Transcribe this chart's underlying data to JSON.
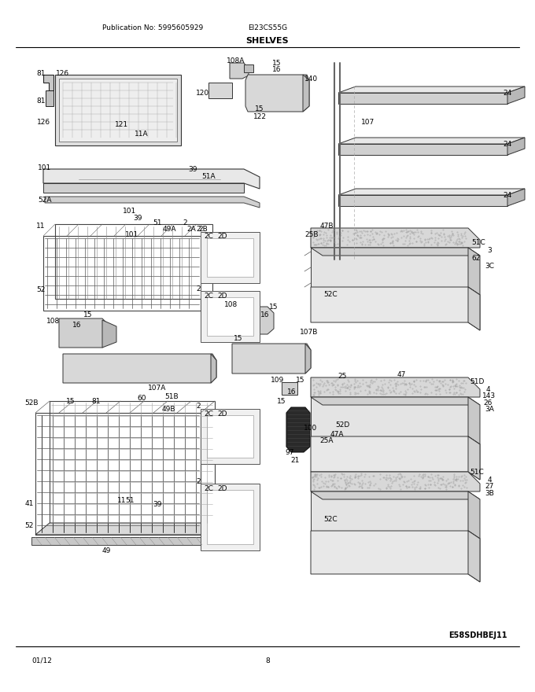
{
  "pub_no": "Publication No: 5995605929",
  "model": "EI23CS55G",
  "title": "SHELVES",
  "date": "01/12",
  "page": "8",
  "diagram_id": "E58SDHBEJ11",
  "fig_width": 6.8,
  "fig_height": 8.8,
  "dpi": 100,
  "bg_color": "#ffffff",
  "text_color": "#000000",
  "line_color": "#000000"
}
